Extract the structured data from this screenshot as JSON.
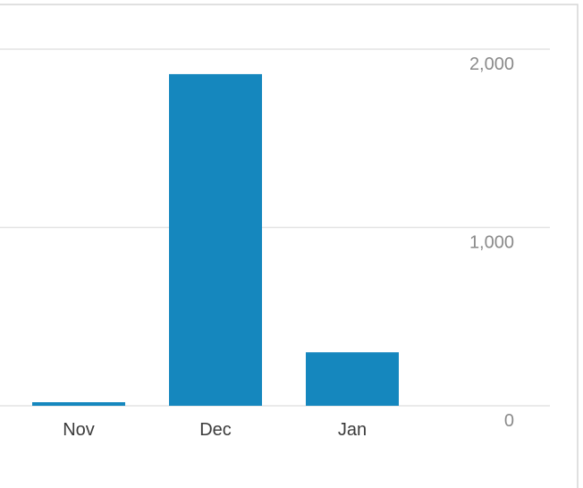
{
  "chart_data": {
    "type": "bar",
    "categories": [
      "Nov",
      "Dec",
      "Jan"
    ],
    "values": [
      20,
      1860,
      300
    ],
    "color": "#1587be",
    "ylim": [
      0,
      2000
    ],
    "yticks": [
      0,
      {
        "value": 1000,
        "label": "1,000"
      },
      {
        "value": 2000,
        "label": "2,000"
      }
    ],
    "grid": true
  }
}
